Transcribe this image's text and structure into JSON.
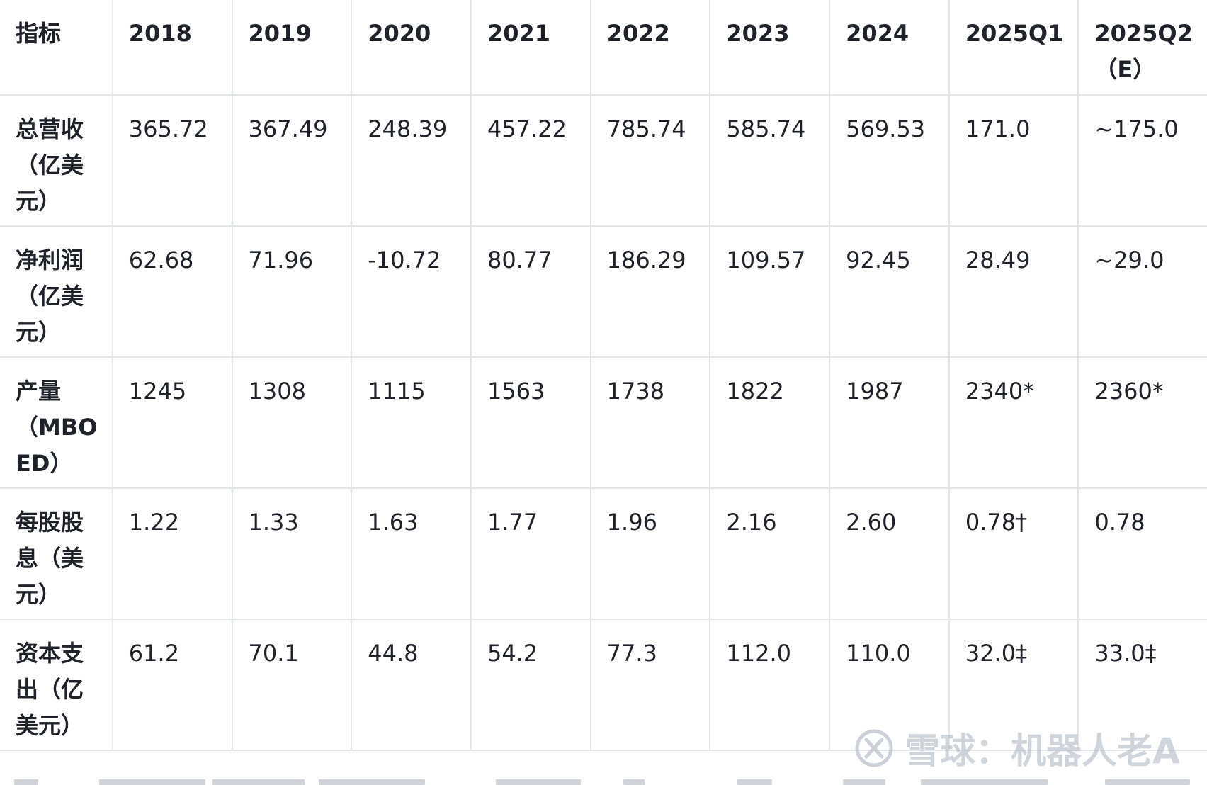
{
  "table": {
    "headers": [
      "指标",
      "2018",
      "2019",
      "2020",
      "2021",
      "2022",
      "2023",
      "2024",
      "2025Q1",
      "2025Q2（E）"
    ],
    "rows": [
      {
        "label": "总营收（亿美元）",
        "values": [
          "365.72",
          "367.49",
          "248.39",
          "457.22",
          "785.74",
          "585.74",
          "569.53",
          "171.0",
          "~175.0"
        ]
      },
      {
        "label": "净利润（亿美元）",
        "values": [
          "62.68",
          "71.96",
          "-10.72",
          "80.77",
          "186.29",
          "109.57",
          "92.45",
          "28.49",
          "~29.0"
        ]
      },
      {
        "label": "产量（MBOED）",
        "values": [
          "1245",
          "1308",
          "1115",
          "1563",
          "1738",
          "1822",
          "1987",
          "2340*",
          "2360*"
        ]
      },
      {
        "label": "每股股息（美元）",
        "values": [
          "1.22",
          "1.33",
          "1.63",
          "1.77",
          "1.96",
          "2.16",
          "2.60",
          "0.78†",
          "0.78"
        ]
      },
      {
        "label": "资本支出（亿美元）",
        "values": [
          "61.2",
          "70.1",
          "44.8",
          "54.2",
          "77.3",
          "112.0",
          "110.0",
          "32.0‡",
          "33.0‡"
        ]
      }
    ]
  },
  "watermark": {
    "text": "雪球：机器人老A",
    "icon": "snowball-logo-icon"
  }
}
